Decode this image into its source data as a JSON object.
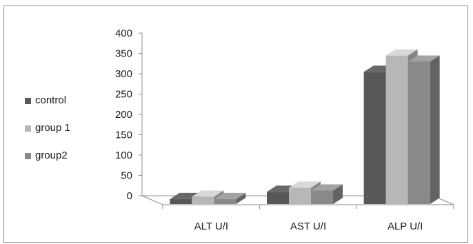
{
  "chart_data": {
    "type": "bar",
    "style": "3d-clustered",
    "categories": [
      "ALT U/I",
      "AST U/I",
      "ALP U/I"
    ],
    "series": [
      {
        "name": "control",
        "values": [
          12,
          30,
          325
        ],
        "color": "#585858"
      },
      {
        "name": "group 1",
        "values": [
          18,
          40,
          365
        ],
        "color": "#b7b7b7"
      },
      {
        "name": "group2",
        "values": [
          12,
          33,
          350
        ],
        "color": "#898989"
      }
    ],
    "ylim": [
      0,
      400
    ],
    "yticks": [
      0,
      50,
      100,
      150,
      200,
      250,
      300,
      350,
      400
    ],
    "title": "",
    "xlabel": "",
    "ylabel": "",
    "legend_position": "left",
    "grid": false
  }
}
